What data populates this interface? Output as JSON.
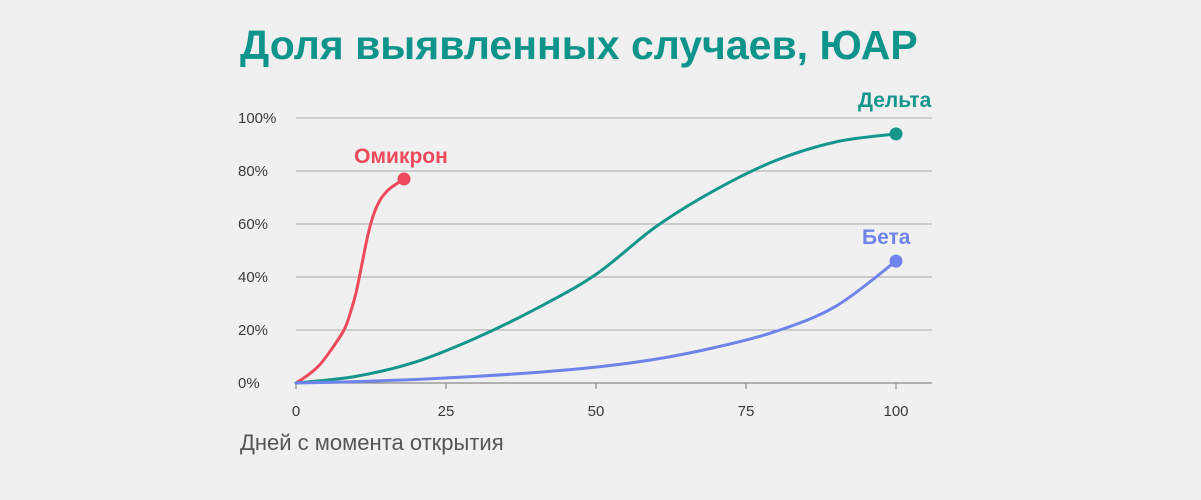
{
  "chart_data": {
    "type": "line",
    "title": "Доля выявленных случаев, ЮАР",
    "xlabel": "Дней с момента открытия",
    "ylabel": "",
    "xlim": [
      0,
      105
    ],
    "ylim": [
      0,
      100
    ],
    "x_ticks": [
      0,
      25,
      50,
      75,
      100
    ],
    "y_ticks": [
      0,
      20,
      40,
      60,
      80,
      100
    ],
    "x_tick_labels": [
      "0",
      "25",
      "50",
      "75",
      "100"
    ],
    "y_tick_labels": [
      "0%",
      "20%",
      "40%",
      "60%",
      "80%",
      "100%"
    ],
    "grid": true,
    "series": [
      {
        "name": "Омикрон",
        "color": "#ee4a5c",
        "x": [
          0,
          2,
          4,
          6,
          8,
          9,
          10,
          11,
          12,
          13,
          14,
          15,
          16,
          17,
          18
        ],
        "y": [
          0,
          3,
          7,
          13,
          20,
          26,
          34,
          45,
          56,
          64,
          69,
          72,
          74,
          75.5,
          77
        ]
      },
      {
        "name": "Дельта",
        "color": "#14968d",
        "x": [
          0,
          10,
          20,
          30,
          40,
          50,
          60,
          70,
          80,
          90,
          100
        ],
        "y": [
          0,
          2.5,
          8,
          17,
          28,
          41,
          59,
          73,
          84,
          91,
          94
        ]
      },
      {
        "name": "Бета",
        "color": "#6f84ea",
        "x": [
          0,
          10,
          20,
          30,
          40,
          50,
          60,
          70,
          80,
          90,
          100
        ],
        "y": [
          0,
          0.5,
          1.3,
          2.5,
          4,
          6,
          9,
          13.5,
          19.5,
          29,
          46
        ]
      }
    ]
  }
}
